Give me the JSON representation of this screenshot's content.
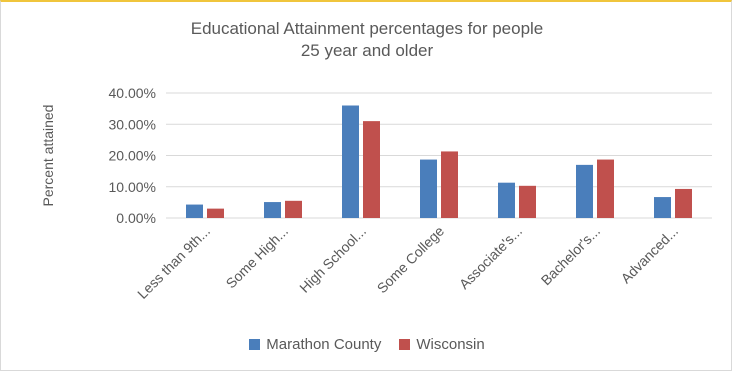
{
  "chart_data": {
    "type": "bar",
    "title_line1": "Educational Attainment percentages for people",
    "title_line2": "25 year and older",
    "ylabel": "Percent attained",
    "xlabel": "",
    "ylim": [
      0,
      40
    ],
    "yticks": [
      "0.00%",
      "10.00%",
      "20.00%",
      "30.00%",
      "40.00%"
    ],
    "categories": [
      "Less than 9th...",
      "Some High...",
      "High School...",
      "Some College",
      "Associate's...",
      "Bachelor's...",
      "Advanced..."
    ],
    "series": [
      {
        "name": "Marathon County",
        "color": "#4a7ebb",
        "values": [
          4.3,
          5.1,
          36.0,
          18.7,
          11.3,
          17.0,
          6.7
        ]
      },
      {
        "name": "Wisconsin",
        "color": "#c0504d",
        "values": [
          3.0,
          5.5,
          31.0,
          21.3,
          10.3,
          18.7,
          9.3
        ]
      }
    ],
    "grid": true,
    "legend_position": "bottom"
  }
}
